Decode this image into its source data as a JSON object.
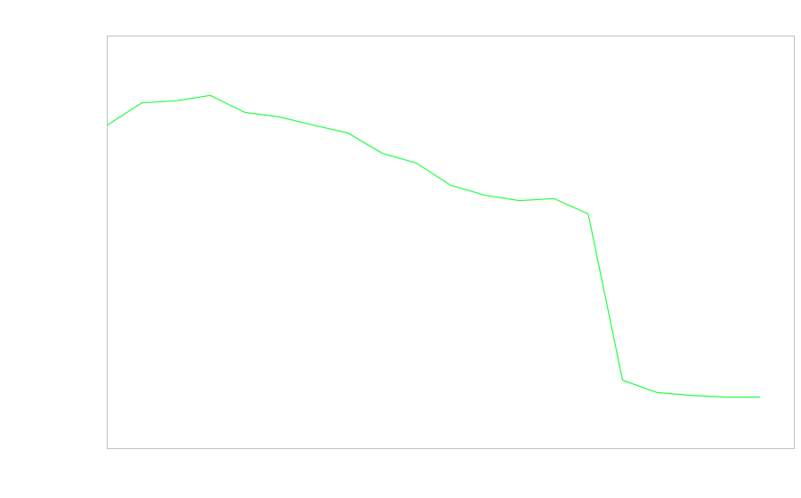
{
  "chart_data": {
    "type": "line",
    "title": "",
    "xlabel": "",
    "ylabel": "",
    "x": [
      0,
      1,
      2,
      3,
      4,
      5,
      6,
      7,
      8,
      9,
      10,
      11,
      12,
      13,
      14,
      15,
      16,
      17,
      18,
      19
    ],
    "series": [
      {
        "values": [
          78.4,
          83.8,
          84.3,
          85.6,
          81.5,
          80.4,
          78.4,
          76.5,
          71.6,
          69.2,
          63.8,
          61.4,
          60.1,
          60.6,
          56.9,
          16.6,
          13.6,
          12.9,
          12.5,
          12.5
        ],
        "color": "#22ff44"
      }
    ],
    "xlim": [
      0,
      20
    ],
    "ylim": [
      0,
      100
    ],
    "grid": false,
    "legend": "none",
    "frame_color": "#c0c0c0"
  }
}
